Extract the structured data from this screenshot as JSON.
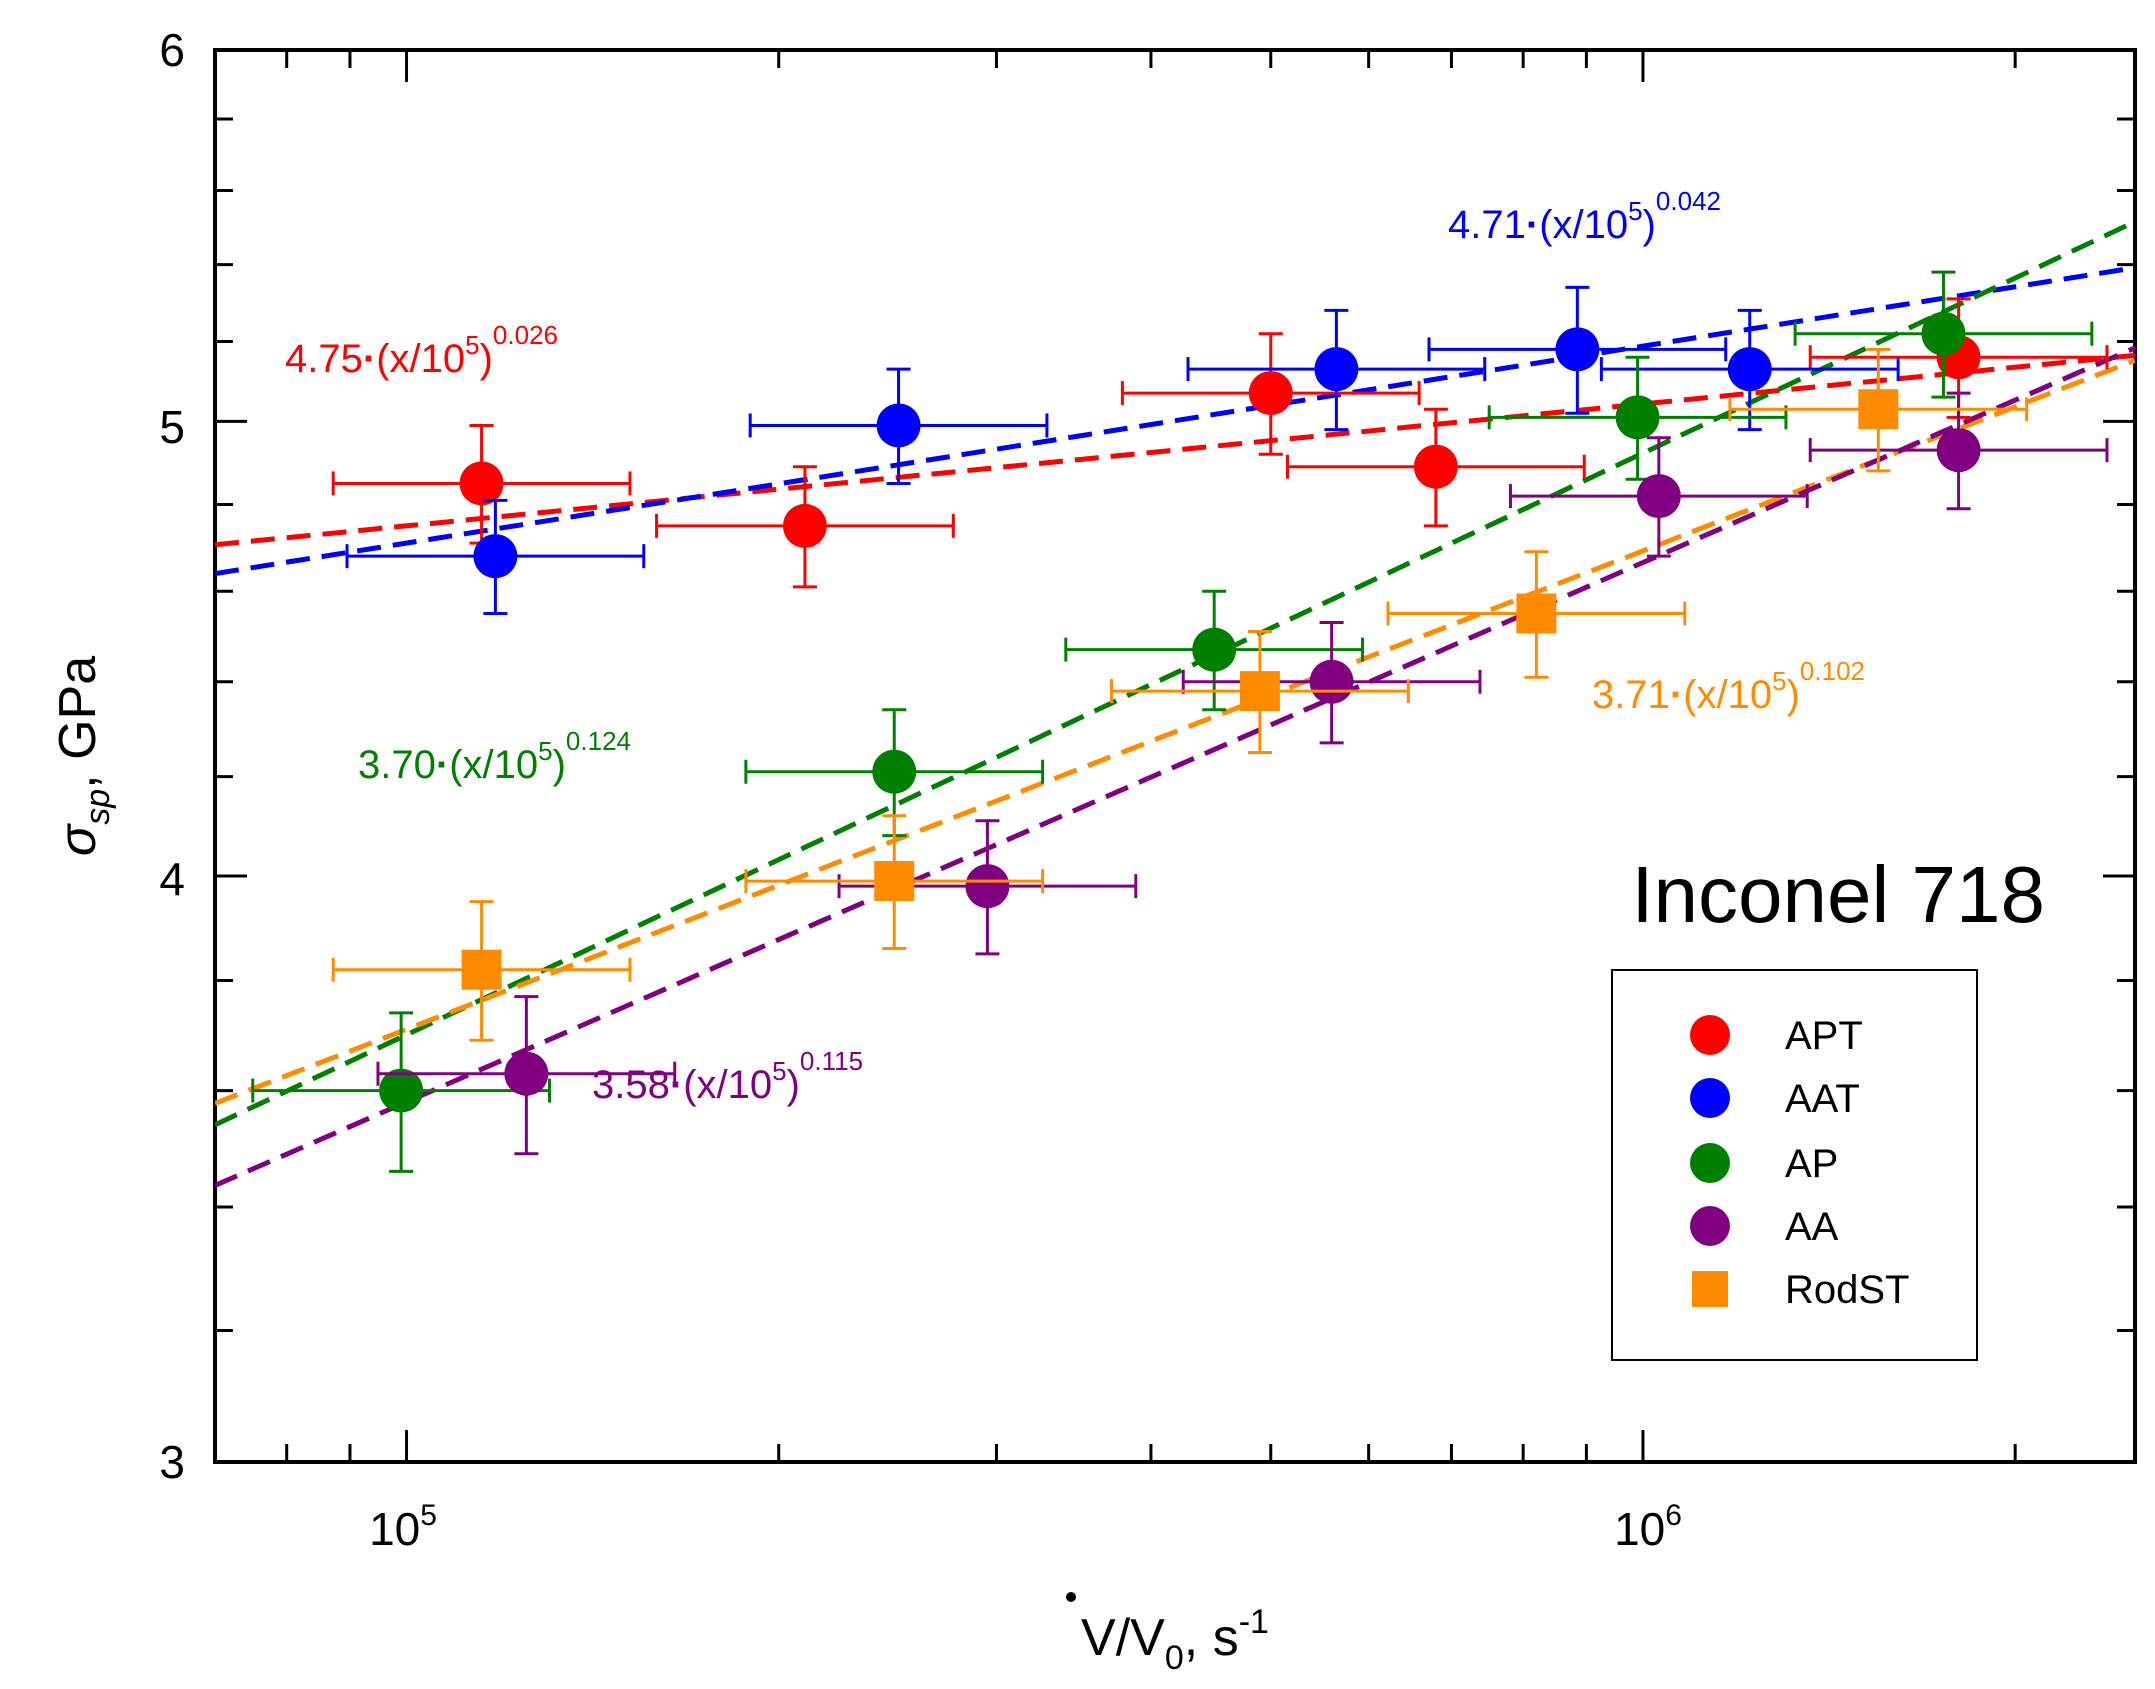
{
  "chart_data": {
    "type": "scatter",
    "title": "Inconel 718",
    "xlabel": "V̇/V0, s-1",
    "xlabel_parts": {
      "v": "V",
      "slash": "/V",
      "sub": "0",
      "unit": ", s",
      "sup": "-1"
    },
    "ylabel": "σsp, GPa",
    "ylabel_parts": {
      "sigma": "σ",
      "sub": "sp",
      "unit": ", GPa"
    },
    "xscale": "log",
    "xlim": [
      70000,
      2500000
    ],
    "ylim": [
      3,
      6
    ],
    "xticks": [
      {
        "base": "10",
        "exp": "5"
      },
      {
        "base": "10",
        "exp": "6"
      }
    ],
    "yticks": [
      "3",
      "4",
      "5",
      "6"
    ],
    "legend": {
      "position": "bottom-right",
      "entries": [
        "APT",
        "AAT",
        "AP",
        "AA",
        "RodST"
      ]
    },
    "series": [
      {
        "name": "APT",
        "color": "#ff0000",
        "marker": "circle",
        "points": [
          {
            "x": 115000,
            "y": 4.85,
            "xe": 0.12,
            "ye": 0.14
          },
          {
            "x": 210000,
            "y": 4.75,
            "xe": 0.12,
            "ye": 0.14
          },
          {
            "x": 500000,
            "y": 5.07,
            "xe": 0.12,
            "ye": 0.15
          },
          {
            "x": 680000,
            "y": 4.89,
            "xe": 0.12,
            "ye": 0.14
          },
          {
            "x": 1800000,
            "y": 5.16,
            "xe": 0.12,
            "ye": 0.15
          }
        ]
      },
      {
        "name": "AAT",
        "color": "#0000ff",
        "marker": "circle",
        "points": [
          {
            "x": 118000,
            "y": 4.68,
            "xe": 0.12,
            "ye": 0.13
          },
          {
            "x": 250000,
            "y": 4.99,
            "xe": 0.12,
            "ye": 0.14
          },
          {
            "x": 565000,
            "y": 5.13,
            "xe": 0.12,
            "ye": 0.15
          },
          {
            "x": 885000,
            "y": 5.18,
            "xe": 0.12,
            "ye": 0.16
          },
          {
            "x": 1220000,
            "y": 5.13,
            "xe": 0.12,
            "ye": 0.15
          }
        ]
      },
      {
        "name": "AP",
        "color": "#008000",
        "marker": "circle",
        "points": [
          {
            "x": 99000,
            "y": 3.6,
            "xe": 0.12,
            "ye": 0.14
          },
          {
            "x": 248000,
            "y": 4.21,
            "xe": 0.12,
            "ye": 0.13
          },
          {
            "x": 450000,
            "y": 4.47,
            "xe": 0.12,
            "ye": 0.13
          },
          {
            "x": 990000,
            "y": 5.01,
            "xe": 0.12,
            "ye": 0.15
          },
          {
            "x": 1750000,
            "y": 5.22,
            "xe": 0.12,
            "ye": 0.16
          }
        ]
      },
      {
        "name": "AA",
        "color": "#800080",
        "marker": "circle",
        "points": [
          {
            "x": 125000,
            "y": 3.63,
            "xe": 0.12,
            "ye": 0.14
          },
          {
            "x": 295000,
            "y": 3.98,
            "xe": 0.12,
            "ye": 0.13
          },
          {
            "x": 560000,
            "y": 4.4,
            "xe": 0.12,
            "ye": 0.13
          },
          {
            "x": 1030000,
            "y": 4.82,
            "xe": 0.12,
            "ye": 0.14
          },
          {
            "x": 1800000,
            "y": 4.93,
            "xe": 0.12,
            "ye": 0.14
          }
        ]
      },
      {
        "name": "RodST",
        "color": "#ff8c00",
        "marker": "square",
        "points": [
          {
            "x": 115000,
            "y": 3.82,
            "xe": 0.12,
            "ye": 0.13
          },
          {
            "x": 248000,
            "y": 3.99,
            "xe": 0.12,
            "ye": 0.13
          },
          {
            "x": 490000,
            "y": 4.38,
            "xe": 0.12,
            "ye": 0.13
          },
          {
            "x": 820000,
            "y": 4.55,
            "xe": 0.12,
            "ye": 0.14
          },
          {
            "x": 1550000,
            "y": 5.03,
            "xe": 0.12,
            "ye": 0.15
          }
        ]
      }
    ],
    "fits": [
      {
        "series": "APT",
        "color": "#ff0000",
        "a": 4.75,
        "b": 0.026,
        "label": {
          "coef": "4.75",
          "dot": "·",
          "body": "(x/10",
          "sup5": "5",
          "close": ")",
          "exp": "0.026"
        },
        "label_anchor": "upper-left"
      },
      {
        "series": "AAT",
        "color": "#0000ff",
        "a": 4.71,
        "b": 0.042,
        "label": {
          "coef": "4.71",
          "dot": "·",
          "body": "(x/10",
          "sup5": "5",
          "close": ")",
          "exp": "0.042"
        },
        "label_anchor": "upper-right"
      },
      {
        "series": "AP",
        "color": "#008000",
        "a": 3.7,
        "b": 0.124,
        "label": {
          "coef": "3.70",
          "dot": "·",
          "body": "(x/10",
          "sup5": "5",
          "close": ")",
          "exp": "0.124"
        },
        "label_anchor": "middle-left"
      },
      {
        "series": "RodST",
        "color": "#ff8c00",
        "a": 3.71,
        "b": 0.102,
        "label": {
          "coef": "3.71",
          "dot": "·",
          "body": "(x/10",
          "sup5": "5",
          "close": ")",
          "exp": "0.102"
        },
        "label_anchor": "middle-right"
      },
      {
        "series": "AA",
        "color": "#800080",
        "a": 3.58,
        "b": 0.115,
        "label": {
          "coef": "3.58",
          "dot": "·",
          "body": "(x/10",
          "sup5": "5",
          "close": ")",
          "exp": "0.115"
        },
        "label_anchor": "lower-left"
      }
    ]
  }
}
